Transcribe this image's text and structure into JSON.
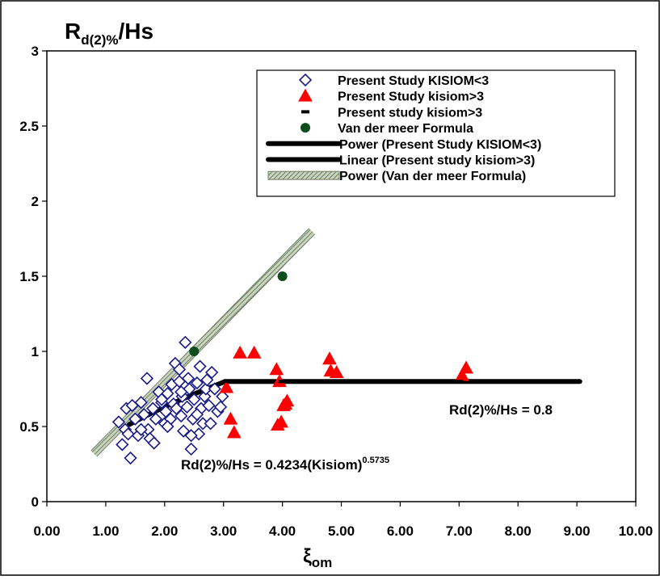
{
  "chart_data": {
    "type": "scatter",
    "title": "R",
    "title_sub": "d(2)%",
    "title_suffix": "/Hs",
    "xlabel": "ξ",
    "xlabel_sub": "om",
    "xlim": [
      0,
      10
    ],
    "ylim": [
      0,
      3
    ],
    "x_ticks": [
      "0.00",
      "1.00",
      "2.00",
      "3.00",
      "4.00",
      "5.00",
      "6.00",
      "7.00",
      "8.00",
      "9.00",
      "10.00"
    ],
    "y_ticks": [
      "0",
      "0.5",
      "1",
      "1.5",
      "2",
      "2.5",
      "3"
    ],
    "grid": false,
    "legend_position": "top-right",
    "legend": [
      {
        "label": "Present Study KISIOM<3",
        "marker": "diamond-open",
        "color": "#1a1a8c"
      },
      {
        "label": "Present Study kisiom>3",
        "marker": "triangle",
        "color": "#ff0000"
      },
      {
        "label": "Present study kisiom>3",
        "marker": "dash",
        "color": "#000000"
      },
      {
        "label": "Van der meer Formula",
        "marker": "circle",
        "color": "#0d4d1e"
      },
      {
        "label": "Power (Present Study KISIOM<3)",
        "marker": "line",
        "color": "#000000"
      },
      {
        "label": "Linear (Present study kisiom>3)",
        "marker": "line",
        "color": "#000000"
      },
      {
        "label": "Power (Van der meer Formula)",
        "marker": "hatched-line",
        "color": "#9aa890"
      }
    ],
    "series": [
      {
        "name": "Present Study KISIOM<3",
        "marker": "diamond-open",
        "color": "#1a1a8c",
        "points": [
          [
            1.22,
            0.53
          ],
          [
            1.28,
            0.38
          ],
          [
            1.33,
            0.48
          ],
          [
            1.35,
            0.62
          ],
          [
            1.38,
            0.45
          ],
          [
            1.42,
            0.29
          ],
          [
            1.45,
            0.64
          ],
          [
            1.5,
            0.55
          ],
          [
            1.55,
            0.44
          ],
          [
            1.6,
            0.66
          ],
          [
            1.65,
            0.58
          ],
          [
            1.7,
            0.82
          ],
          [
            1.72,
            0.48
          ],
          [
            1.75,
            0.42
          ],
          [
            1.8,
            0.62
          ],
          [
            1.82,
            0.39
          ],
          [
            1.85,
            0.55
          ],
          [
            1.9,
            0.73
          ],
          [
            1.95,
            0.66
          ],
          [
            2.0,
            0.52
          ],
          [
            2.02,
            0.6
          ],
          [
            2.05,
            0.72
          ],
          [
            2.1,
            0.55
          ],
          [
            2.12,
            0.78
          ],
          [
            2.15,
            0.65
          ],
          [
            2.18,
            0.92
          ],
          [
            2.2,
            0.62
          ],
          [
            2.25,
            0.8
          ],
          [
            2.28,
            0.57
          ],
          [
            2.3,
            0.7
          ],
          [
            2.32,
            0.47
          ],
          [
            2.35,
            1.06
          ],
          [
            2.38,
            0.63
          ],
          [
            2.4,
            0.82
          ],
          [
            2.42,
            0.75
          ],
          [
            2.45,
            0.35
          ],
          [
            2.48,
            0.55
          ],
          [
            2.5,
            0.68
          ],
          [
            2.55,
            0.79
          ],
          [
            2.58,
            0.45
          ],
          [
            2.6,
            0.9
          ],
          [
            2.62,
            0.62
          ],
          [
            2.65,
            0.52
          ],
          [
            2.68,
            0.7
          ],
          [
            2.7,
            0.75
          ],
          [
            2.72,
            0.81
          ],
          [
            2.75,
            0.64
          ],
          [
            2.78,
            0.52
          ],
          [
            2.8,
            0.86
          ],
          [
            2.85,
            0.75
          ],
          [
            2.9,
            0.6
          ],
          [
            2.95,
            0.63
          ],
          [
            2.98,
            0.7
          ],
          [
            2.05,
            0.5
          ],
          [
            1.95,
            0.68
          ],
          [
            2.28,
            0.73
          ],
          [
            1.6,
            0.48
          ],
          [
            2.55,
            0.58
          ],
          [
            2.45,
            0.44
          ],
          [
            2.25,
            0.88
          ]
        ]
      },
      {
        "name": "Present Study kisiom>3",
        "marker": "triangle",
        "color": "#ff0000",
        "points": [
          [
            3.05,
            0.76
          ],
          [
            3.12,
            0.55
          ],
          [
            3.18,
            0.46
          ],
          [
            3.28,
            0.99
          ],
          [
            3.52,
            0.99
          ],
          [
            3.9,
            0.88
          ],
          [
            3.92,
            0.51
          ],
          [
            3.95,
            0.8
          ],
          [
            3.98,
            0.53
          ],
          [
            4.02,
            0.64
          ],
          [
            4.05,
            0.65
          ],
          [
            4.08,
            0.67
          ],
          [
            4.8,
            0.95
          ],
          [
            4.82,
            0.87
          ],
          [
            4.92,
            0.86
          ],
          [
            7.05,
            0.84
          ],
          [
            7.12,
            0.89
          ]
        ]
      },
      {
        "name": "Present study kisiom>3",
        "marker": "dash",
        "color": "#000000",
        "points": [
          [
            3.1,
            0.8
          ],
          [
            4.0,
            0.8
          ],
          [
            5.0,
            0.8
          ],
          [
            7.0,
            0.8
          ]
        ]
      },
      {
        "name": "Van der meer Formula",
        "marker": "circle",
        "color": "#0d4d1e",
        "points": [
          [
            2.5,
            1.0
          ],
          [
            4.0,
            1.5
          ]
        ]
      }
    ],
    "trendlines": [
      {
        "name": "Power (Van der meer Formula)",
        "kind": "power",
        "coef": 0.4,
        "exponent": 1.0,
        "x_range": [
          0.8,
          4.5
        ],
        "style": "hatched",
        "color": "#9aa890"
      },
      {
        "name": "Power (Present Study KISIOM<3)",
        "kind": "power",
        "coef": 0.4234,
        "exponent": 0.5735,
        "x_range": [
          1.4,
          3.02
        ],
        "style": "solid",
        "color": "#000000"
      },
      {
        "name": "Linear (Present study kisiom>3)",
        "kind": "constant",
        "value": 0.8,
        "x_range": [
          3.02,
          9.05
        ],
        "style": "solid",
        "color": "#000000"
      }
    ],
    "annotations": [
      {
        "id": "eq-power",
        "text": "Rd(2)%/Hs = 0.4234(Kisiom)",
        "superscript": "0.5735"
      },
      {
        "id": "eq-linear",
        "text": "Rd(2)%/Hs = 0.8"
      }
    ]
  }
}
